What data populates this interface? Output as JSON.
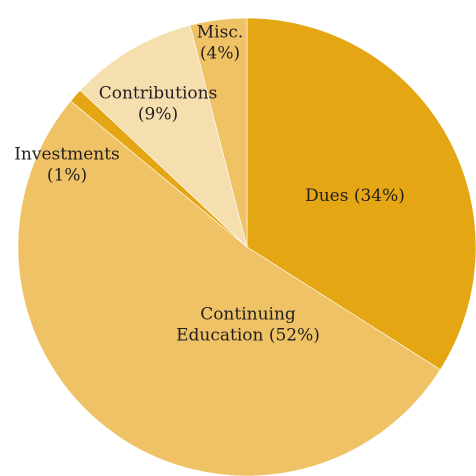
{
  "chart_data": {
    "type": "pie",
    "title": "",
    "start": "12 o'clock",
    "direction": "clockwise",
    "slices": [
      {
        "name": "Dues",
        "value": 34,
        "color": "#e5a614",
        "label_lines": [
          "Dues (34%)"
        ]
      },
      {
        "name": "Continuing Education",
        "value": 52,
        "color": "#efc266",
        "label_lines": [
          "Continuing",
          "Education (52%)"
        ]
      },
      {
        "name": "Investments",
        "value": 1,
        "color": "#e5a614",
        "label_lines": [
          "Investments",
          "(1%)"
        ]
      },
      {
        "name": "Contributions",
        "value": 9,
        "color": "#f6dfae",
        "label_lines": [
          "Contributions",
          "(9%)"
        ]
      },
      {
        "name": "Misc.",
        "value": 4,
        "color": "#efc266",
        "label_lines": [
          "Misc.",
          "(4%)"
        ]
      }
    ]
  }
}
